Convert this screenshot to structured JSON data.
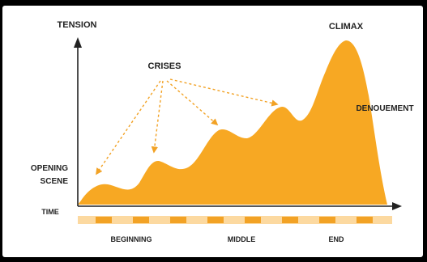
{
  "labels": {
    "tension": "TENSION",
    "climax": "CLIMAX",
    "crises": "CRISES",
    "denouement": "DENOUEMENT",
    "opening_line1": "OPENING",
    "opening_line2": "SCENE",
    "time": "TIME",
    "beginning": "BEGINNING",
    "middle": "MIDDLE",
    "end": "END"
  },
  "colors": {
    "background": "#000000",
    "canvas": "#ffffff",
    "tension_fill": "#f7a823",
    "time_bar": "#fcd9a0",
    "time_dash": "#f2a225",
    "arrow": "#f2a225",
    "axis": "#222222",
    "text": "#222222"
  }
}
